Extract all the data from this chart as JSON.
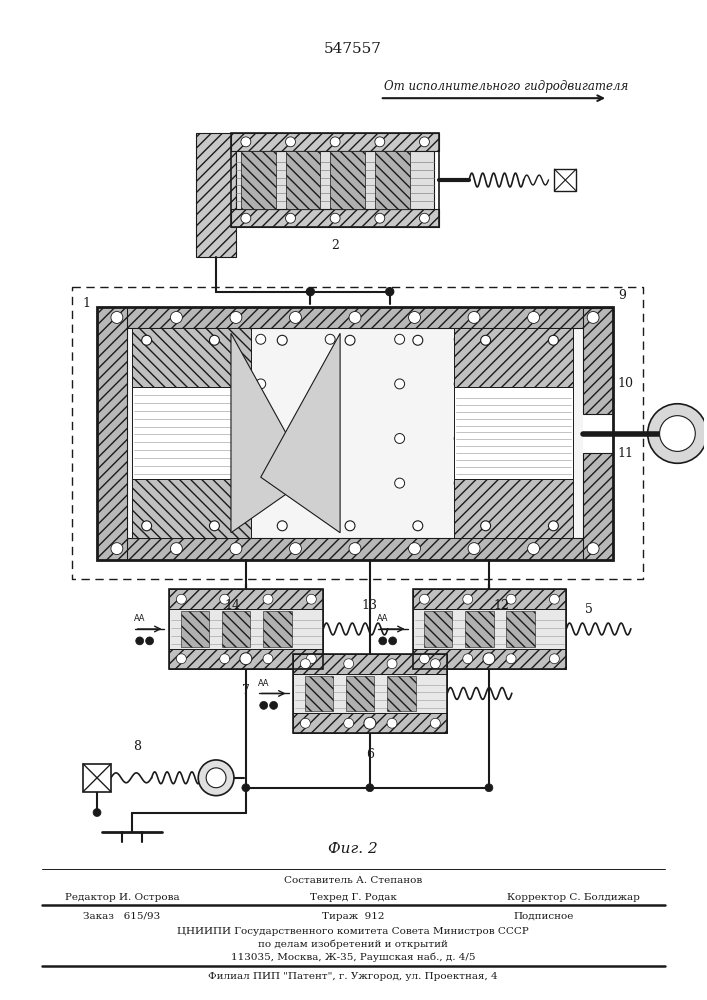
{
  "patent_number": "547557",
  "top_label": "От исполнительного гидродвигателя",
  "fig_label": "Фиг. 2",
  "footer_line1": "Составитель А. Степанов",
  "footer_line2_left": "Редактор И. Острова",
  "footer_line2_mid": "Техред Г. Родак",
  "footer_line2_right": "Корректор С. Болдижар",
  "footer_line3_left": "Заказ   615/93",
  "footer_line3_mid": "Тираж  912",
  "footer_line3_right": "Подписное",
  "footer_line4": "ЦНИИПИ Государственного комитета Совета Министров СССР",
  "footer_line5": "по делам изобретений и открытий",
  "footer_line6": "113035, Москва, Ж-35, Раушская наб., д. 4/5",
  "footer_line7": "Филиал ПИП \"Патент\", г. Ужгород, ул. Проектная, 4",
  "bg_color": "#ffffff",
  "dc": "#1a1a1a"
}
